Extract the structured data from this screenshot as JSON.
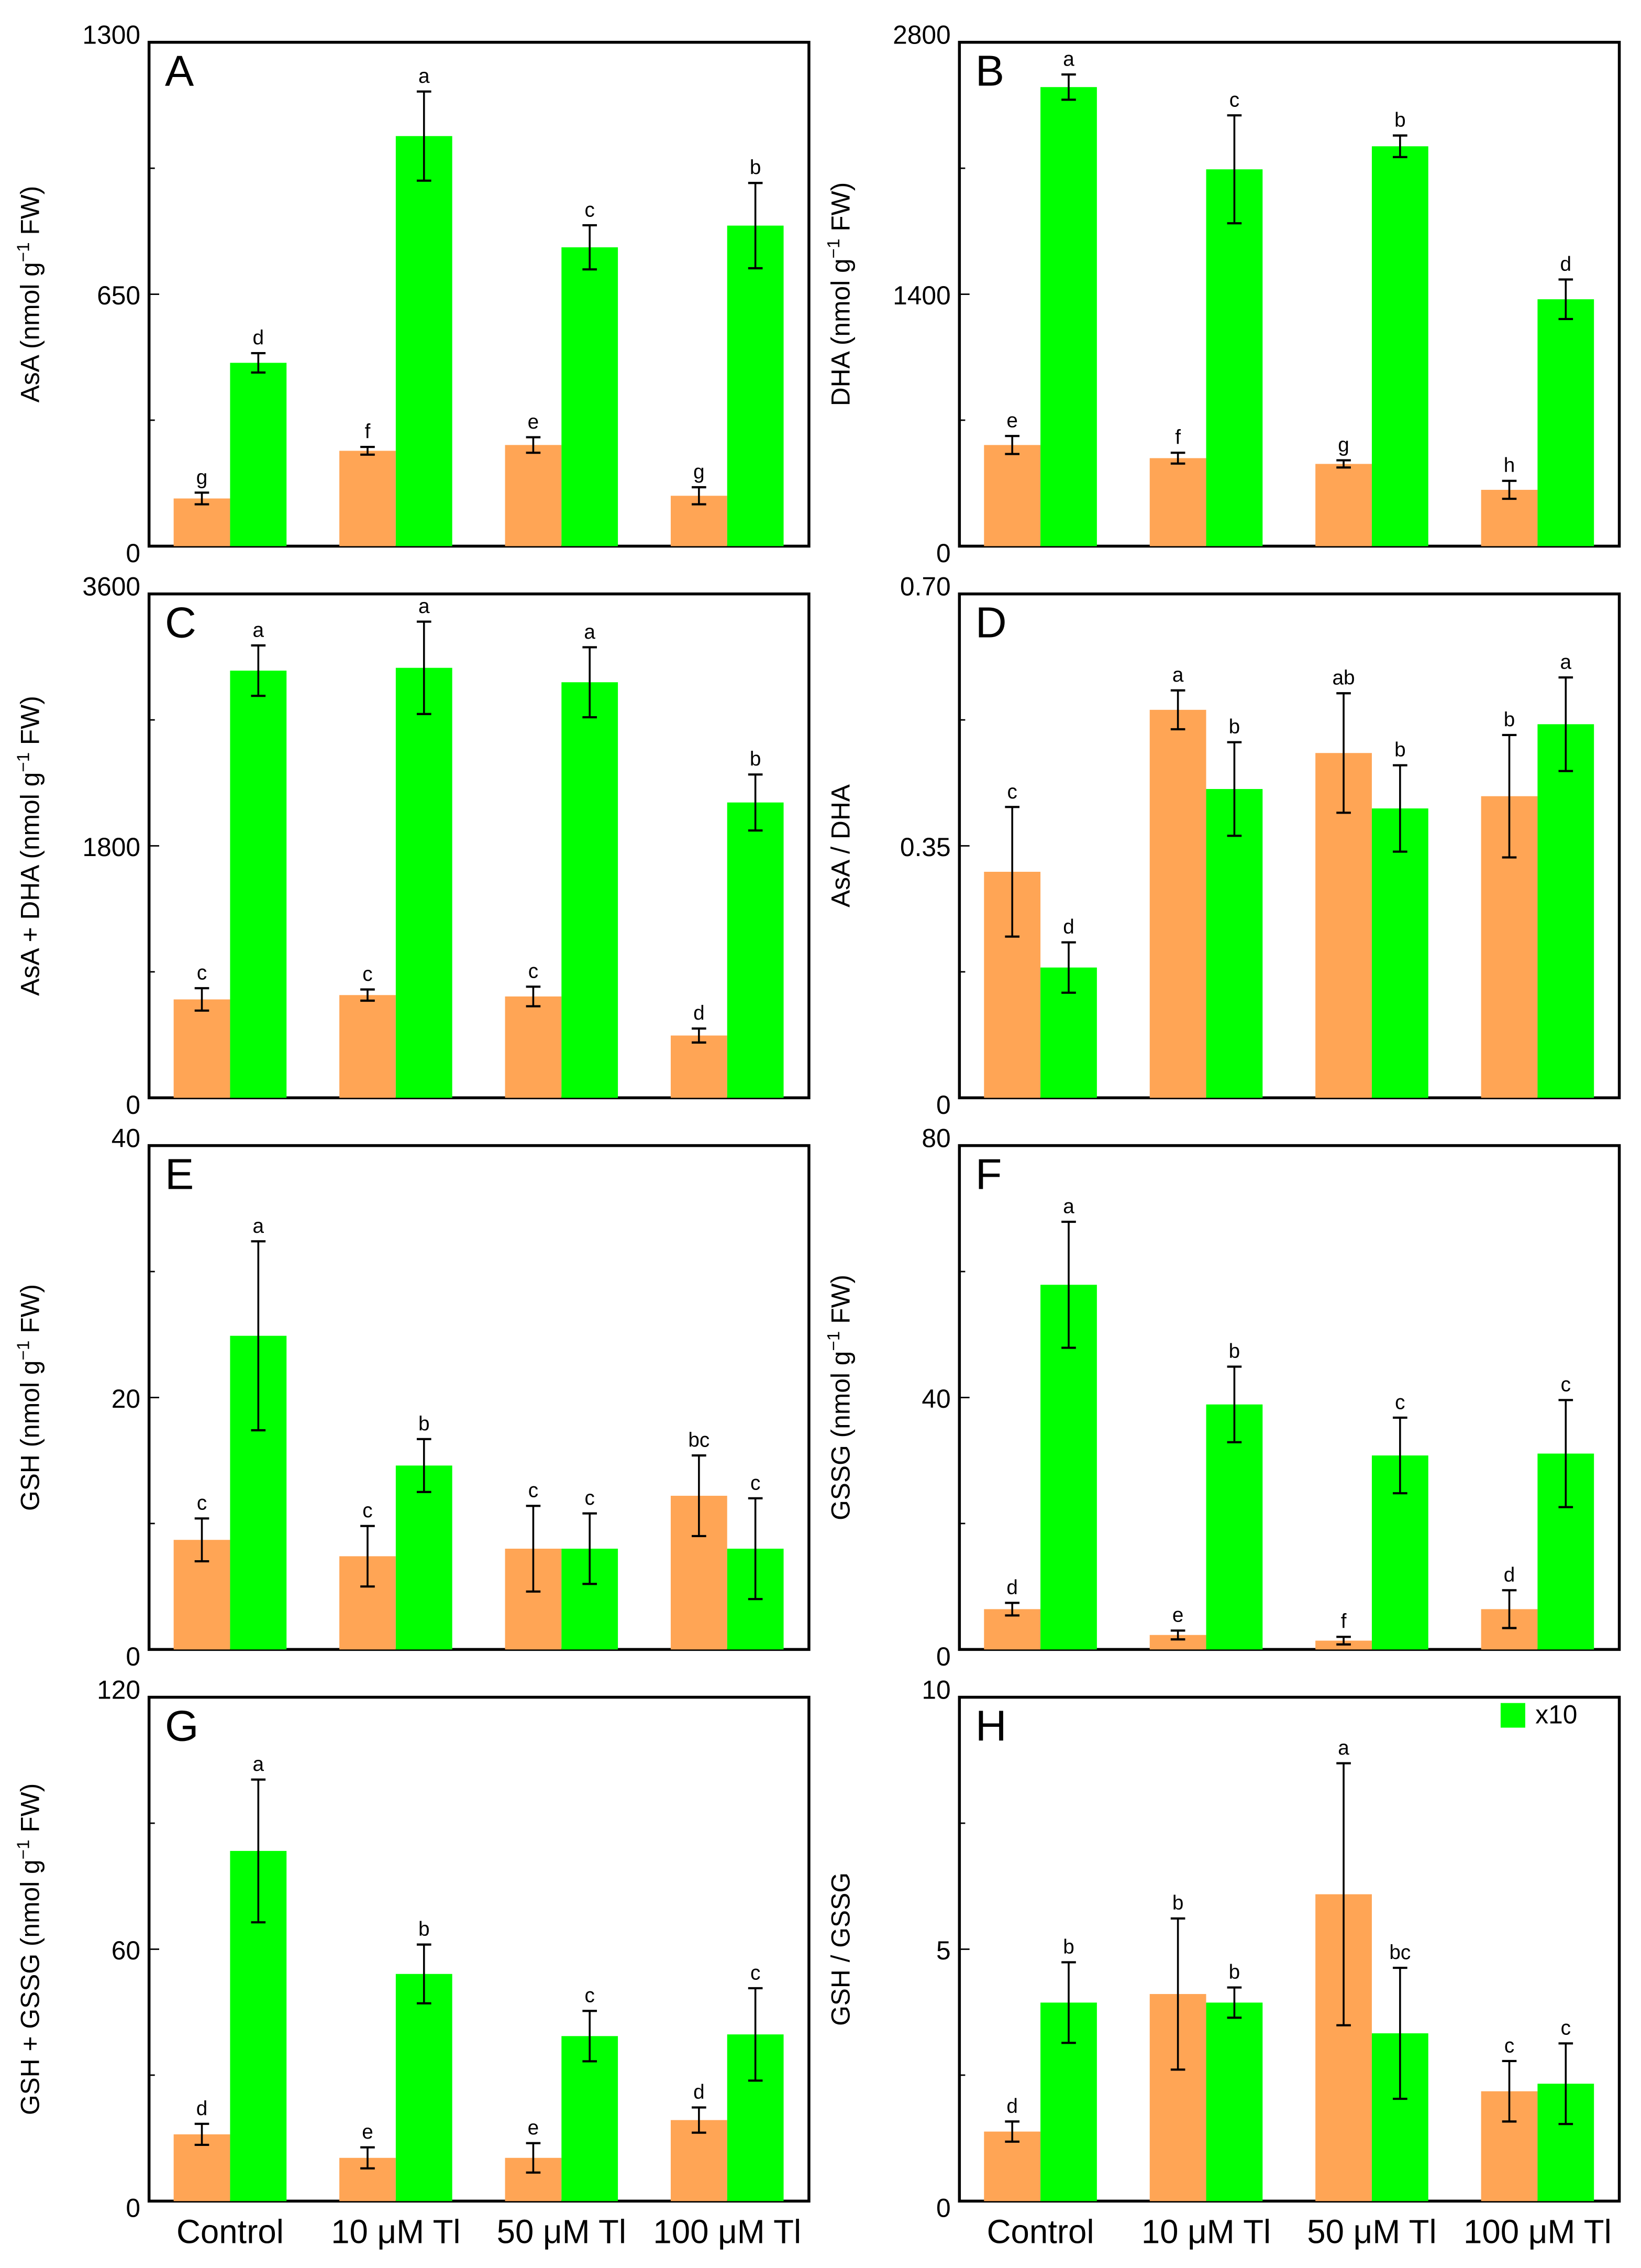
{
  "colors": {
    "orange": "#FFA555",
    "green": "#00FF00"
  },
  "categories": [
    "Control",
    "10 μM Tl",
    "50 μM Tl",
    "100 μM Tl"
  ],
  "chart_data": [
    {
      "type": "bar",
      "panel": "A",
      "ylabel": [
        "AsA (nmol g",
        "−1",
        " FW)"
      ],
      "ylim": [
        0,
        1300
      ],
      "yticks": [
        "0",
        "650",
        "1300"
      ],
      "series": [
        {
          "color": "orange",
          "values": [
            123,
            246,
            261,
            130
          ],
          "errors": [
            15,
            10,
            20,
            22
          ],
          "letters": [
            "g",
            "f",
            "e",
            "g"
          ]
        },
        {
          "color": "green",
          "values": [
            473,
            1058,
            771,
            827
          ],
          "errors": [
            25,
            115,
            57,
            110
          ],
          "letters": [
            "d",
            "a",
            "c",
            "b"
          ]
        }
      ]
    },
    {
      "type": "bar",
      "panel": "B",
      "ylabel": [
        "DHA (nmol g",
        "−1",
        " FW)"
      ],
      "ylim": [
        0,
        2800
      ],
      "yticks": [
        "0",
        "1400",
        "2800"
      ],
      "series": [
        {
          "color": "orange",
          "values": [
            562,
            489,
            457,
            313
          ],
          "errors": [
            50,
            30,
            20,
            50
          ],
          "letters": [
            "e",
            "f",
            "g",
            "h"
          ]
        },
        {
          "color": "green",
          "values": [
            2551,
            2094,
            2222,
            1372
          ],
          "errors": [
            70,
            300,
            60,
            110
          ],
          "letters": [
            "a",
            "c",
            "b",
            "d"
          ]
        }
      ]
    },
    {
      "type": "bar",
      "panel": "C",
      "ylabel": [
        "AsA + DHA (nmol g",
        "−1",
        " FW)"
      ],
      "ylim": [
        0,
        3600
      ],
      "yticks": [
        "0",
        "1800",
        "3600"
      ],
      "series": [
        {
          "color": "orange",
          "values": [
            703,
            734,
            724,
            445
          ],
          "errors": [
            80,
            40,
            70,
            50
          ],
          "letters": [
            "c",
            "c",
            "c",
            "d"
          ]
        },
        {
          "color": "green",
          "values": [
            3052,
            3072,
            2969,
            2110
          ],
          "errors": [
            180,
            330,
            250,
            200
          ],
          "letters": [
            "a",
            "a",
            "a",
            "b"
          ]
        }
      ]
    },
    {
      "type": "bar",
      "panel": "D",
      "ylabel": [
        "AsA / DHA",
        "",
        ""
      ],
      "ylim": [
        0,
        0.7
      ],
      "yticks": [
        "0",
        "0.35",
        "0.70"
      ],
      "series": [
        {
          "color": "orange",
          "values": [
            0.314,
            0.539,
            0.479,
            0.419
          ],
          "errors": [
            0.09,
            0.027,
            0.083,
            0.085
          ],
          "letters": [
            "c",
            "a",
            "ab",
            "b"
          ]
        },
        {
          "color": "green",
          "values": [
            0.181,
            0.429,
            0.402,
            0.519
          ],
          "errors": [
            0.035,
            0.065,
            0.06,
            0.065
          ],
          "letters": [
            "d",
            "b",
            "b",
            "a"
          ]
        }
      ]
    },
    {
      "type": "bar",
      "panel": "E",
      "ylabel": [
        "GSH  (nmol g",
        "−1",
        " FW)"
      ],
      "ylim": [
        0,
        40
      ],
      "yticks": [
        "0",
        "20",
        "40"
      ],
      "series": [
        {
          "color": "orange",
          "values": [
            8.7,
            7.4,
            8.0,
            12.2
          ],
          "errors": [
            1.7,
            2.4,
            3.4,
            3.2
          ],
          "letters": [
            "c",
            "c",
            "c",
            "bc"
          ]
        },
        {
          "color": "green",
          "values": [
            24.9,
            14.6,
            8.0,
            8.0
          ],
          "errors": [
            7.5,
            2.1,
            2.8,
            4.0
          ],
          "letters": [
            "a",
            "b",
            "c",
            "c"
          ]
        }
      ]
    },
    {
      "type": "bar",
      "panel": "F",
      "ylabel": [
        "GSSG (nmol g",
        "−1",
        " FW)"
      ],
      "ylim": [
        0,
        80
      ],
      "yticks": [
        "0",
        "40",
        "80"
      ],
      "series": [
        {
          "color": "orange",
          "values": [
            6.4,
            2.3,
            1.4,
            6.4
          ],
          "errors": [
            1,
            0.7,
            0.6,
            3
          ],
          "letters": [
            "d",
            "e",
            "f",
            "d"
          ]
        },
        {
          "color": "green",
          "values": [
            57.9,
            38.9,
            30.8,
            31.1
          ],
          "errors": [
            10,
            6,
            6,
            8.5
          ],
          "letters": [
            "a",
            "b",
            "c",
            "c"
          ]
        }
      ]
    },
    {
      "type": "bar",
      "panel": "G",
      "ylabel": [
        "GSH + GSSG (nmol g",
        "−1",
        " FW)"
      ],
      "ylim": [
        0,
        120
      ],
      "yticks": [
        "0",
        "60",
        "120"
      ],
      "series": [
        {
          "color": "orange",
          "values": [
            15.9,
            10.3,
            10.3,
            19.3
          ],
          "errors": [
            2.5,
            2.5,
            3.5,
            3
          ],
          "letters": [
            "d",
            "e",
            "e",
            "d"
          ]
        },
        {
          "color": "green",
          "values": [
            83.4,
            54.1,
            39.3,
            39.7
          ],
          "errors": [
            17,
            7,
            6,
            11
          ],
          "letters": [
            "a",
            "b",
            "c",
            "c"
          ]
        }
      ]
    },
    {
      "type": "bar",
      "panel": "H",
      "ylabel": [
        "GSH / GSSG",
        "",
        ""
      ],
      "ylim": [
        0,
        10
      ],
      "yticks": [
        "0",
        "5",
        "10"
      ],
      "legend": {
        "label": "x10",
        "color": "green",
        "position": "top-right"
      },
      "series": [
        {
          "color": "orange",
          "values": [
            1.38,
            4.11,
            6.09,
            2.18
          ],
          "errors": [
            0.2,
            1.5,
            2.6,
            0.6
          ],
          "letters": [
            "d",
            "b",
            "a",
            "c"
          ]
        },
        {
          "color": "green",
          "values": [
            3.94,
            3.94,
            3.33,
            2.33
          ],
          "errors": [
            0.8,
            0.3,
            1.3,
            0.8
          ],
          "letters": [
            "b",
            "b",
            "bc",
            "c"
          ]
        }
      ]
    }
  ]
}
